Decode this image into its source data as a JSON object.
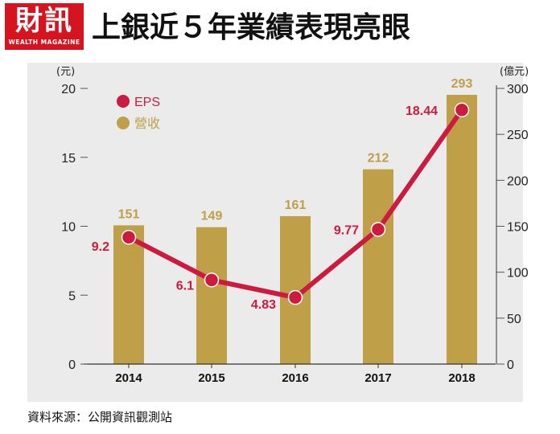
{
  "logo": {
    "main": "財訊",
    "sub": "WEALTH MAGAZINE"
  },
  "title": "上銀近５年業績表現亮眼",
  "source": "資料來源：公開資訊觀測站",
  "colors": {
    "eps_line": "#cc1b3f",
    "revenue_bar": "#bfa048",
    "background": "#ebebeb",
    "logo": "#d6141f"
  },
  "chart_data": {
    "type": "bar",
    "categories": [
      "2014",
      "2015",
      "2016",
      "2017",
      "2018"
    ],
    "series": [
      {
        "name": "EPS",
        "kind": "line",
        "axis": "left",
        "values": [
          9.2,
          6.1,
          4.83,
          9.77,
          18.44
        ],
        "labels": [
          "9.2",
          "6.1",
          "4.83",
          "9.77",
          "18.44"
        ]
      },
      {
        "name": "營收",
        "kind": "bar",
        "axis": "right",
        "values": [
          151,
          149,
          161,
          212,
          293
        ],
        "labels": [
          "151",
          "149",
          "161",
          "212",
          "293"
        ]
      }
    ],
    "left_axis": {
      "unit": "(元)",
      "ylim": [
        0,
        20
      ],
      "ticks": [
        0,
        5,
        10,
        15,
        20
      ]
    },
    "right_axis": {
      "unit": "(億元)",
      "ylim": [
        0,
        300
      ],
      "ticks": [
        0,
        50,
        100,
        150,
        200,
        250,
        300
      ]
    },
    "legend": "top-left",
    "grid": false
  }
}
